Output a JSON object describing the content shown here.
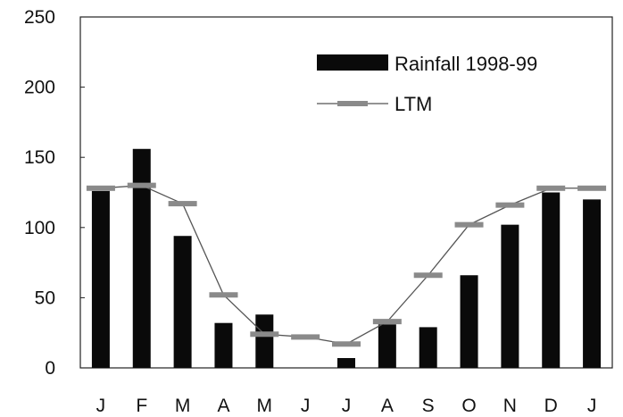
{
  "chart_data": {
    "type": "bar",
    "categories": [
      "J",
      "F",
      "M",
      "A",
      "M",
      "J",
      "J",
      "A",
      "S",
      "O",
      "N",
      "D",
      "J"
    ],
    "series": [
      {
        "name": "Rainfall 1998-99",
        "type": "bar",
        "values": [
          126,
          156,
          94,
          32,
          38,
          0,
          7,
          31,
          29,
          66,
          102,
          125,
          120
        ],
        "color": "#0a0a0a"
      },
      {
        "name": "LTM",
        "type": "line",
        "values": [
          128,
          130,
          117,
          52,
          24,
          22,
          17,
          33,
          66,
          102,
          116,
          128,
          128
        ],
        "color": "#555555",
        "marker_color": "#8a8a8a"
      }
    ],
    "ylim": [
      0,
      250
    ],
    "yticks": [
      "0",
      "50",
      "100",
      "150",
      "200",
      "250"
    ],
    "xlabel": "",
    "ylabel": "",
    "title": "",
    "legend_position": "top-right",
    "grid": false
  }
}
